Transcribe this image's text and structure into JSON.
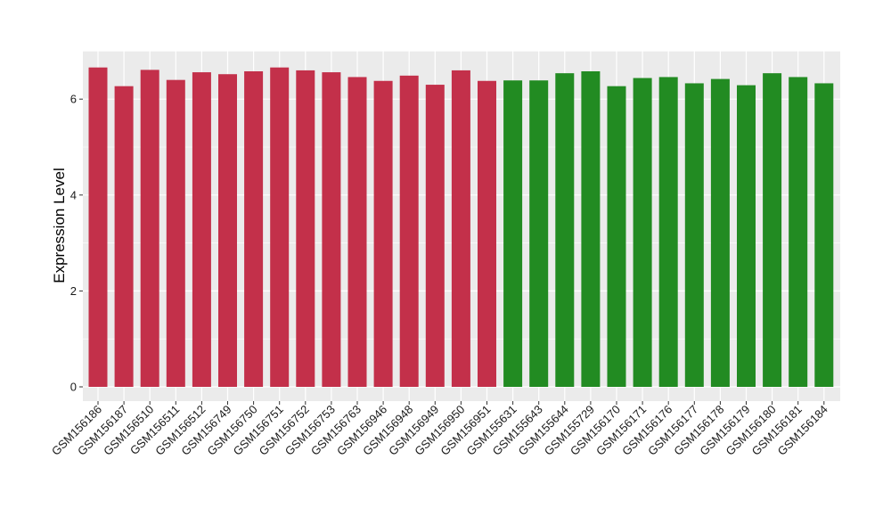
{
  "chart_data": {
    "type": "bar",
    "title": "",
    "xlabel": "",
    "ylabel": "Expression Level",
    "ylim": [
      0,
      7
    ],
    "yticks": [
      0,
      2,
      4,
      6
    ],
    "grid": true,
    "categories": [
      "GSM156186",
      "GSM156187",
      "GSM156510",
      "GSM156511",
      "GSM156512",
      "GSM156749",
      "GSM156750",
      "GSM156751",
      "GSM156752",
      "GSM156753",
      "GSM156763",
      "GSM156946",
      "GSM156948",
      "GSM156949",
      "GSM156950",
      "GSM156951",
      "GSM155631",
      "GSM155643",
      "GSM155644",
      "GSM155729",
      "GSM156170",
      "GSM156171",
      "GSM156176",
      "GSM156177",
      "GSM156178",
      "GSM156179",
      "GSM156180",
      "GSM156181",
      "GSM156184"
    ],
    "values": [
      6.66,
      6.27,
      6.61,
      6.4,
      6.56,
      6.52,
      6.58,
      6.66,
      6.6,
      6.56,
      6.46,
      6.38,
      6.49,
      6.3,
      6.6,
      6.38,
      6.39,
      6.39,
      6.54,
      6.58,
      6.27,
      6.44,
      6.46,
      6.33,
      6.42,
      6.29,
      6.54,
      6.46,
      6.33
    ],
    "group_colors": [
      "#c3304a",
      "#c3304a",
      "#c3304a",
      "#c3304a",
      "#c3304a",
      "#c3304a",
      "#c3304a",
      "#c3304a",
      "#c3304a",
      "#c3304a",
      "#c3304a",
      "#c3304a",
      "#c3304a",
      "#c3304a",
      "#c3304a",
      "#c3304a",
      "#228b22",
      "#228b22",
      "#228b22",
      "#228b22",
      "#228b22",
      "#228b22",
      "#228b22",
      "#228b22",
      "#228b22",
      "#228b22",
      "#228b22",
      "#228b22",
      "#228b22"
    ],
    "panel_background": "#ebebeb",
    "grid_color": "#ffffff"
  }
}
